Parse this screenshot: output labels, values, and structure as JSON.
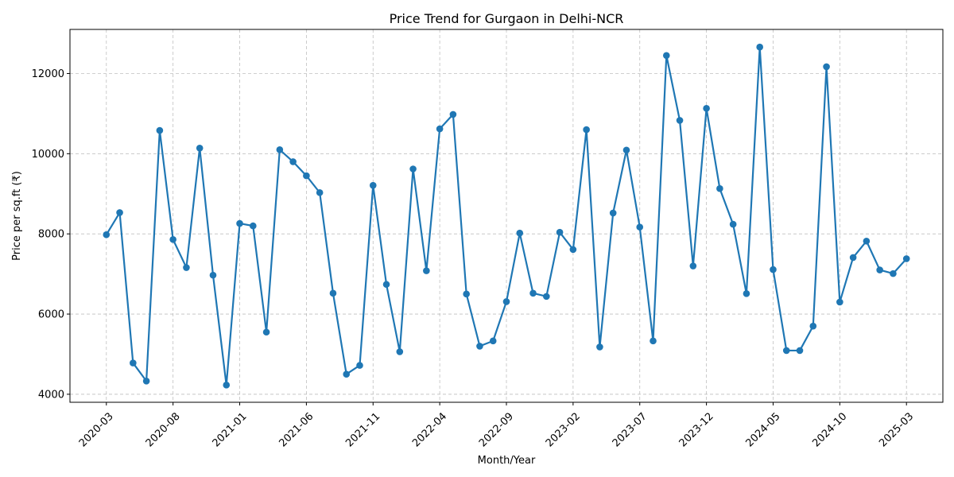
{
  "chart_data": {
    "type": "line",
    "title": "Price Trend for Gurgaon in Delhi-NCR",
    "xlabel": "Month/Year",
    "ylabel": "Price per sq.ft (₹)",
    "x_tick_labels": [
      "2020-03",
      "2020-08",
      "2021-01",
      "2021-06",
      "2021-11",
      "2022-04",
      "2022-09",
      "2023-02",
      "2023-07",
      "2023-12",
      "2024-05",
      "2024-10",
      "2025-03"
    ],
    "y_ticks": [
      4000,
      6000,
      8000,
      10000,
      12000
    ],
    "ylim": [
      3800,
      13100
    ],
    "grid": true,
    "color": "#1f77b4",
    "series": [
      {
        "x": [
          "2020-03",
          "2020-04",
          "2020-05",
          "2020-06",
          "2020-07",
          "2020-08",
          "2020-09",
          "2020-10",
          "2020-11",
          "2020-12",
          "2021-01",
          "2021-02",
          "2021-03",
          "2021-04",
          "2021-05",
          "2021-06",
          "2021-07",
          "2021-08",
          "2021-09",
          "2021-10",
          "2021-11",
          "2021-12",
          "2022-01",
          "2022-02",
          "2022-03",
          "2022-04",
          "2022-05",
          "2022-06",
          "2022-07",
          "2022-08",
          "2022-09",
          "2022-10",
          "2022-11",
          "2022-12",
          "2023-01",
          "2023-02",
          "2023-03",
          "2023-04",
          "2023-05",
          "2023-06",
          "2023-07",
          "2023-08",
          "2023-09",
          "2023-10",
          "2023-11",
          "2023-12",
          "2024-01",
          "2024-02",
          "2024-03",
          "2024-04",
          "2024-05",
          "2024-06",
          "2024-07",
          "2024-08",
          "2024-09",
          "2024-10",
          "2024-11",
          "2024-12",
          "2025-01",
          "2025-02",
          "2025-03"
        ],
        "values": [
          7980,
          8530,
          4780,
          4330,
          10580,
          7860,
          7160,
          10140,
          6970,
          4230,
          8260,
          8200,
          5550,
          10100,
          9800,
          9450,
          9030,
          6520,
          4500,
          4720,
          9210,
          6740,
          5060,
          9620,
          7080,
          10620,
          10980,
          6500,
          5200,
          5330,
          6310,
          8020,
          6520,
          6440,
          8040,
          7610,
          10600,
          5180,
          8520,
          10090,
          8170,
          5330,
          12450,
          10830,
          7200,
          11130,
          9130,
          8240,
          6510,
          12660,
          7110,
          5090,
          5090,
          5700,
          12170,
          6300,
          7410,
          7820,
          7100,
          7010,
          7380
        ]
      }
    ]
  }
}
